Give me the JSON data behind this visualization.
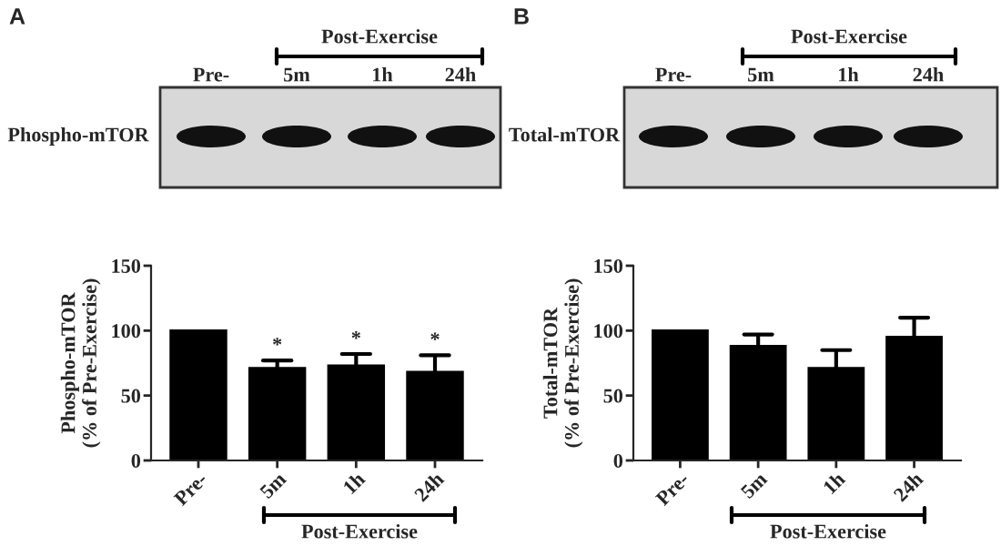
{
  "chart_data": [
    {
      "type": "bar",
      "categories": [
        "Pre-",
        "5m",
        "1h",
        "24h"
      ],
      "values": [
        100,
        71,
        73,
        68
      ],
      "errors": [
        null,
        [
          71,
          77
        ],
        [
          73,
          82
        ],
        [
          68,
          81
        ]
      ],
      "color": "#000000",
      "ylabel": "Phospho-mTOR\n(% of Pre-Exercise)",
      "ylim": [
        0,
        150
      ],
      "yticks": [
        0,
        50,
        100,
        150
      ],
      "grid": false,
      "legend": false,
      "annotations": [
        "A",
        "Phospho-mTOR",
        "Pre-",
        "5m",
        "1h",
        "24h",
        "Post-Exercise",
        "Post-Exercise",
        {
          "text": "*",
          "x": "5m",
          "y": 77
        },
        {
          "text": "*",
          "x": "1h",
          "y": 82
        },
        {
          "text": "*",
          "x": "24h",
          "y": 81
        }
      ]
    },
    {
      "type": "bar",
      "categories": [
        "Pre-",
        "5m",
        "1h",
        "24h"
      ],
      "values": [
        100,
        88,
        71,
        95
      ],
      "errors": [
        null,
        [
          88,
          97
        ],
        [
          71,
          85
        ],
        [
          95,
          110
        ]
      ],
      "color": "#000000",
      "ylabel": "Total-mTOR\n(% of Pre-Exercise)",
      "ylim": [
        0,
        150
      ],
      "yticks": [
        0,
        50,
        100,
        150
      ],
      "grid": false,
      "legend": false,
      "annotations": [
        "B",
        "Total-mTOR",
        "Pre-",
        "5m",
        "1h",
        "24h",
        "Post-Exercise",
        "Post-Exercise"
      ]
    }
  ]
}
